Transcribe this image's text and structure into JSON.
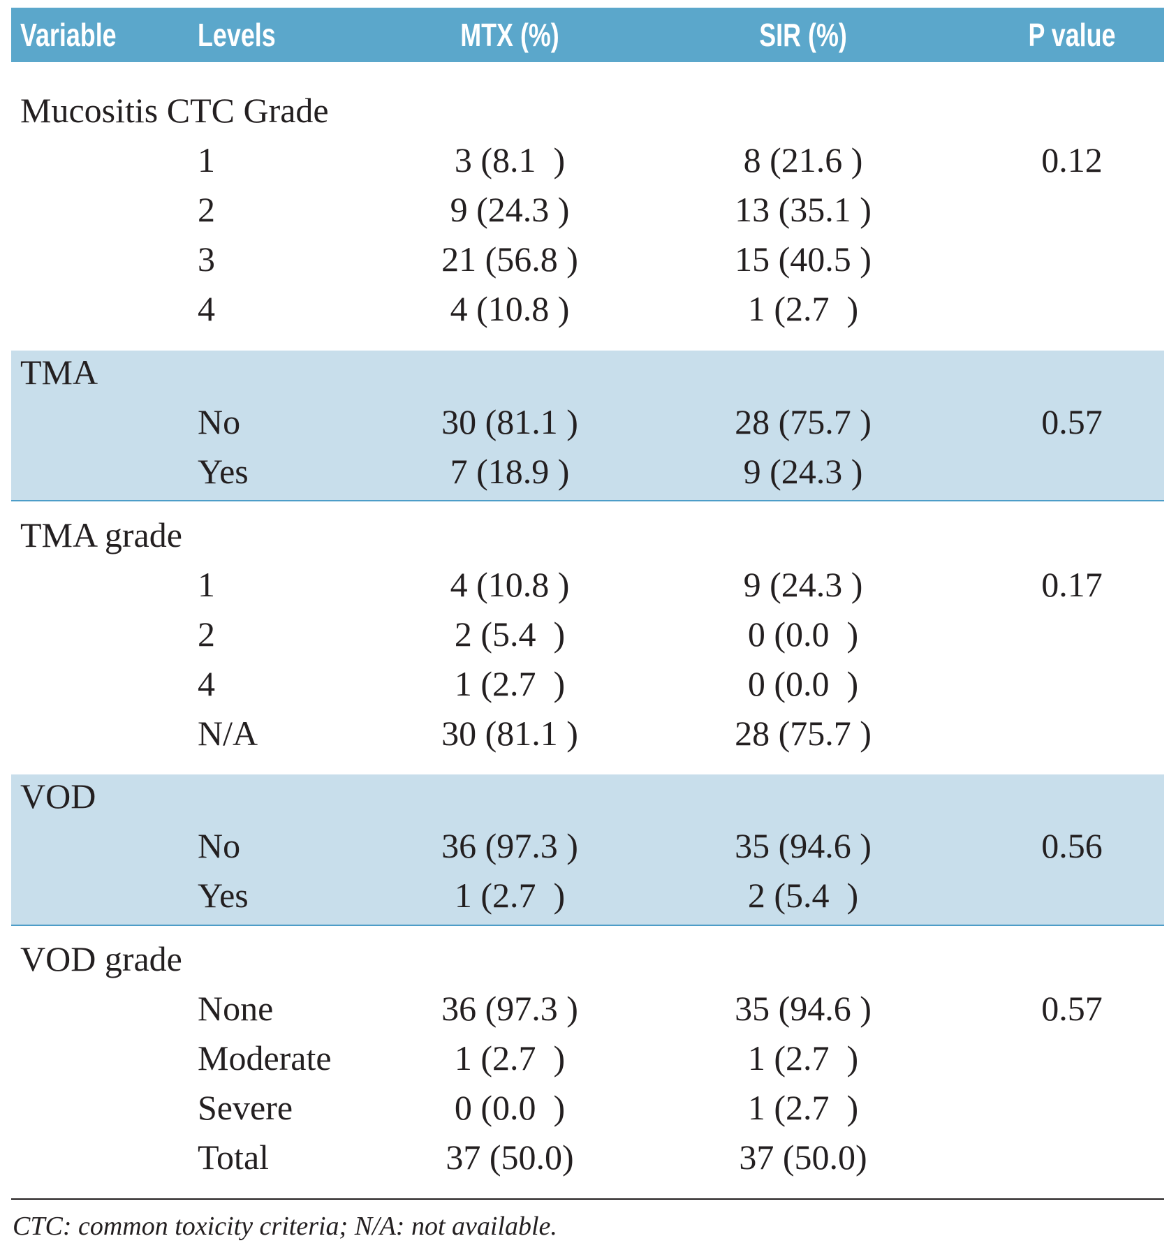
{
  "header": [
    "Variable",
    "Levels",
    "MTX (%)",
    "SIR (%)",
    "P value"
  ],
  "groups": [
    {
      "variable": "Mucositis CTC Grade",
      "p_value": 0.12,
      "rows": [
        [
          "1",
          "3 (8.1  )",
          "8 (21.6 )"
        ],
        [
          "2",
          "9 (24.3 )",
          "13 (35.1 )"
        ],
        [
          "3",
          "21 (56.8 )",
          "15 (40.5 )"
        ],
        [
          "4",
          "4 (10.8 )",
          "1 (2.7  )"
        ]
      ]
    },
    {
      "variable": "TMA",
      "p_value": 0.57,
      "rows": [
        [
          "No",
          "30 (81.1 )",
          "28 (75.7 )"
        ],
        [
          "Yes",
          "7 (18.9 )",
          "9 (24.3 )"
        ]
      ]
    },
    {
      "variable": "TMA grade",
      "p_value": 0.17,
      "rows": [
        [
          "1",
          "4 (10.8 )",
          "9 (24.3 )"
        ],
        [
          "2",
          "2 (5.4  )",
          "0 (0.0  )"
        ],
        [
          "4",
          "1 (2.7  )",
          "0 (0.0  )"
        ],
        [
          "N/A",
          "30 (81.1 )",
          "28 (75.7 )"
        ]
      ]
    },
    {
      "variable": "VOD",
      "p_value": 0.56,
      "rows": [
        [
          "No",
          "36 (97.3 )",
          "35 (94.6 )"
        ],
        [
          "Yes",
          "1 (2.7  )",
          "2 (5.4  )"
        ]
      ]
    },
    {
      "variable": "VOD grade",
      "p_value": 0.57,
      "rows": [
        [
          "None",
          "36 (97.3 )",
          "35 (94.6 )"
        ],
        [
          "Moderate",
          "1 (2.7  )",
          "1 (2.7  )"
        ],
        [
          "Severe",
          "0 (0.0  )",
          "1 (2.7  )"
        ],
        [
          "Total",
          "37 (50.0)",
          "37 (50.0)"
        ]
      ]
    }
  ],
  "footnote": "CTC: common toxicity criteria; N/A: not available."
}
